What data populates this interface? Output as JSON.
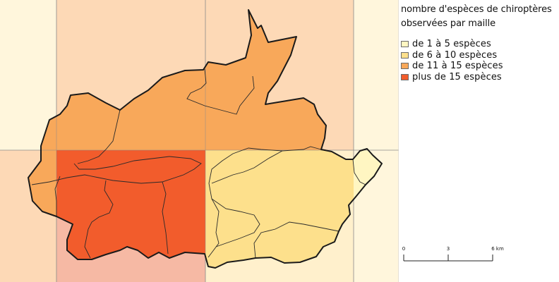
{
  "legend": {
    "title_line1": "nombre d'espèces de chiroptères",
    "title_line2": "observées par maille",
    "items": [
      {
        "label": "de 1 à 5 espèces",
        "color": "#fff6c2"
      },
      {
        "label": "de 6 à 10 espèces",
        "color": "#fde08c"
      },
      {
        "label": "de 11 à 15 espèces",
        "color": "#f8a85a"
      },
      {
        "label": "plus de 15 espèces",
        "color": "#f25c2c"
      }
    ]
  },
  "scalebar": {
    "labels": [
      "0",
      "3",
      "6 km"
    ]
  },
  "colors": {
    "cell_light": "#fff6dc",
    "cell_peach": "#fdd9b6",
    "cell_pink": "#f6b9a4",
    "cell_cream": "#fff0cc",
    "grid_line": "#8a8a8a",
    "border": "#1a1a1a"
  }
}
